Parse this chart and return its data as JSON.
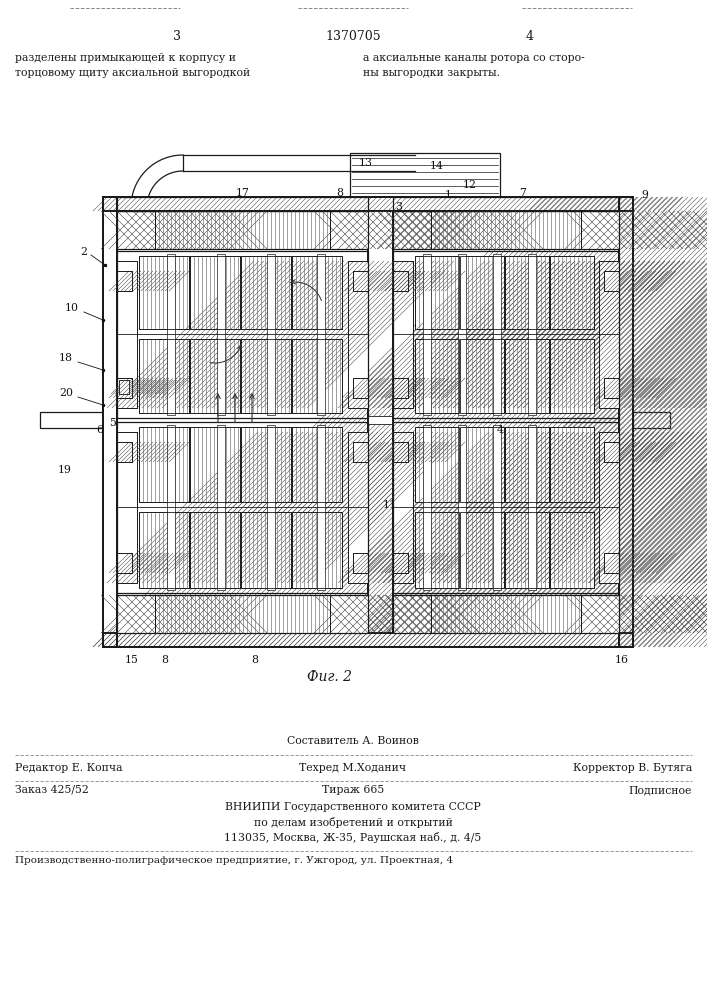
{
  "page_width": 7.07,
  "page_height": 10.0,
  "bg_color": "#ffffff",
  "line_color": "#1a1a1a",
  "hatch_color": "#444444",
  "page_num_left": "3",
  "page_num_center": "1370705",
  "page_num_right": "4",
  "top_text_left_1": "разделены примыкающей к корпусу и",
  "top_text_left_2": "торцовому щиту аксиальной выгородкой",
  "top_text_right_1": "а аксиальные каналы ротора со сторо-",
  "top_text_right_2": "ны выгородки закрыты.",
  "fig_caption": "Фиг. 2",
  "editor_left": "Редактор Е. Копча",
  "composer_top": "Составитель А. Воинов",
  "techred_mid": "Техред М.Ходанич",
  "corrector_right": "Корректор В. Бутяга",
  "order_left": "Заказ 425/52",
  "tirazh_center": "Тираж 665",
  "podpisnoe_right": "Подписное",
  "org1": "ВНИИПИ Государственного комитета СССР",
  "org2": "по делам изобретений и открытий",
  "org3": "113035, Москва, Ж-35, Раушская наб., д. 4/5",
  "enterprise": "Производственно-полиграфическое предприятие, г. Ужгород, ул. Проектная, 4"
}
